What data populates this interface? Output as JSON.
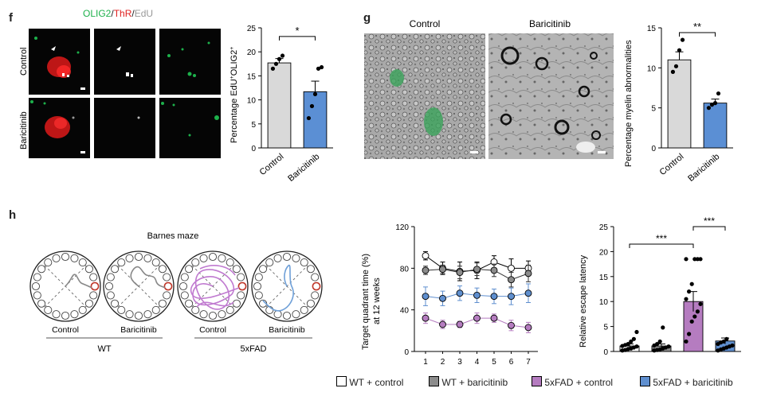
{
  "panels": {
    "f": {
      "letter": "f",
      "header": {
        "olig2": "OLIG2",
        "sep1": "/",
        "thr": "ThR",
        "sep2": "/",
        "edu": "EdU"
      },
      "row_labels": [
        "Control",
        "Baricitinib"
      ],
      "colors": {
        "olig2": "#1db14b",
        "thr": "#e0201f",
        "edu": "#999999"
      }
    },
    "g": {
      "letter": "g",
      "image_labels": [
        "Control",
        "Baricitinib"
      ]
    },
    "h": {
      "letter": "h",
      "maze_title": "Barnes maze",
      "maze_labels": [
        "Control",
        "Baricitinib",
        "Control",
        "Baricitinib"
      ],
      "groups": [
        "WT",
        "5xFAD"
      ],
      "path_colors": [
        "#888888",
        "#888888",
        "#c07ad0",
        "#6fa0d8"
      ]
    }
  },
  "legend": [
    {
      "label": "WT + control",
      "color": "#ffffff"
    },
    {
      "label": "WT + baricitinib",
      "color": "#8c8c8c"
    },
    {
      "label": "5xFAD + control",
      "color": "#b57cc0"
    },
    {
      "label": "5xFAD + baricitinib",
      "color": "#5f8fcf"
    }
  ],
  "chart_data": [
    {
      "type": "bar",
      "categories": [
        "Control",
        "Baricitinib"
      ],
      "values": [
        17.7,
        11.7
      ],
      "errors": [
        0.9,
        2.2
      ],
      "points": [
        [
          16.5,
          17.5,
          18.5,
          19.2
        ],
        [
          6.2,
          8.7,
          11.2,
          16.5,
          16.8
        ]
      ],
      "colors": [
        "#d9d9d9",
        "#5b8fd4"
      ],
      "ylabel_main": "Percentage EdU",
      "ylabel_sup1": "+",
      "ylabel_mid": "OLIG2",
      "ylabel_sup2": "+",
      "yticks": [
        0,
        5,
        10,
        15,
        20,
        25
      ],
      "ylim": [
        0,
        25
      ],
      "significance": "*"
    },
    {
      "type": "bar",
      "categories": [
        "Control",
        "Baricitinib"
      ],
      "values": [
        11.0,
        5.6
      ],
      "errors": [
        1.0,
        0.5
      ],
      "points": [
        [
          9.5,
          10.2,
          12.2,
          13.5
        ],
        [
          5.0,
          5.4,
          5.6,
          6.8
        ]
      ],
      "colors": [
        "#d9d9d9",
        "#5b8fd4"
      ],
      "ylabel": "Percentage myelin abnormalities",
      "yticks": [
        0,
        5,
        10,
        15
      ],
      "ylim": [
        0,
        15
      ],
      "significance": "**"
    },
    {
      "type": "line",
      "x": [
        1,
        2,
        3,
        4,
        5,
        6,
        7
      ],
      "ylabel_line1": "Target quadrant time (%)",
      "ylabel_line2": "at 12 weeks",
      "yticks": [
        0,
        40,
        80,
        120
      ],
      "ylim": [
        0,
        120
      ],
      "series": [
        {
          "values": [
            92,
            80,
            77,
            78,
            86,
            80,
            80
          ],
          "errors": [
            4,
            6,
            9,
            8,
            6,
            9,
            7
          ],
          "fill": "#ffffff",
          "stroke": "#000000"
        },
        {
          "values": [
            78,
            79,
            76,
            79,
            78,
            69,
            75
          ],
          "errors": [
            4,
            4,
            6,
            6,
            6,
            7,
            8
          ],
          "fill": "#8c8c8c",
          "stroke": "#333333"
        },
        {
          "values": [
            32,
            26,
            26,
            32,
            32,
            25,
            23
          ],
          "errors": [
            5,
            4,
            3,
            5,
            4,
            5,
            5
          ],
          "fill": "#b57cc0",
          "stroke": "#b57cc0"
        },
        {
          "values": [
            53,
            51,
            56,
            54,
            53,
            53,
            56
          ],
          "errors": [
            9,
            7,
            7,
            7,
            7,
            8,
            9
          ],
          "fill": "#5f8fcf",
          "stroke": "#5f8fcf"
        }
      ]
    },
    {
      "type": "bar",
      "categories": [
        "WT + control",
        "WT + baricitinib",
        "5xFAD + control",
        "5xFAD + baricitinib"
      ],
      "values": [
        1.1,
        1.1,
        10.0,
        2.1
      ],
      "errors": [
        0.4,
        0.4,
        2.0,
        0.6
      ],
      "colors": [
        "#ffffff",
        "#8c8c8c",
        "#b57cc0",
        "#5f8fcf"
      ],
      "points": [
        [
          0.2,
          0.3,
          0.5,
          0.6,
          0.8,
          1.0,
          1.1,
          1.3,
          1.5,
          2.0,
          2.5,
          3.9
        ],
        [
          0.2,
          0.3,
          0.4,
          0.6,
          0.8,
          1.0,
          1.2,
          1.5,
          2.0,
          4.8
        ],
        [
          2.0,
          3.5,
          6.0,
          7.0,
          8.0,
          9.5,
          10.5,
          12.0,
          13.5,
          18.5,
          18.5,
          18.5,
          18.5
        ],
        [
          0.2,
          0.4,
          0.6,
          0.8,
          1.0,
          1.2,
          1.5,
          1.8,
          2.0,
          2.5
        ]
      ],
      "ylabel": "Relative escape latency",
      "yticks": [
        0,
        5,
        10,
        15,
        20,
        25
      ],
      "ylim": [
        0,
        25
      ],
      "significance": [
        "***",
        "***"
      ]
    }
  ]
}
